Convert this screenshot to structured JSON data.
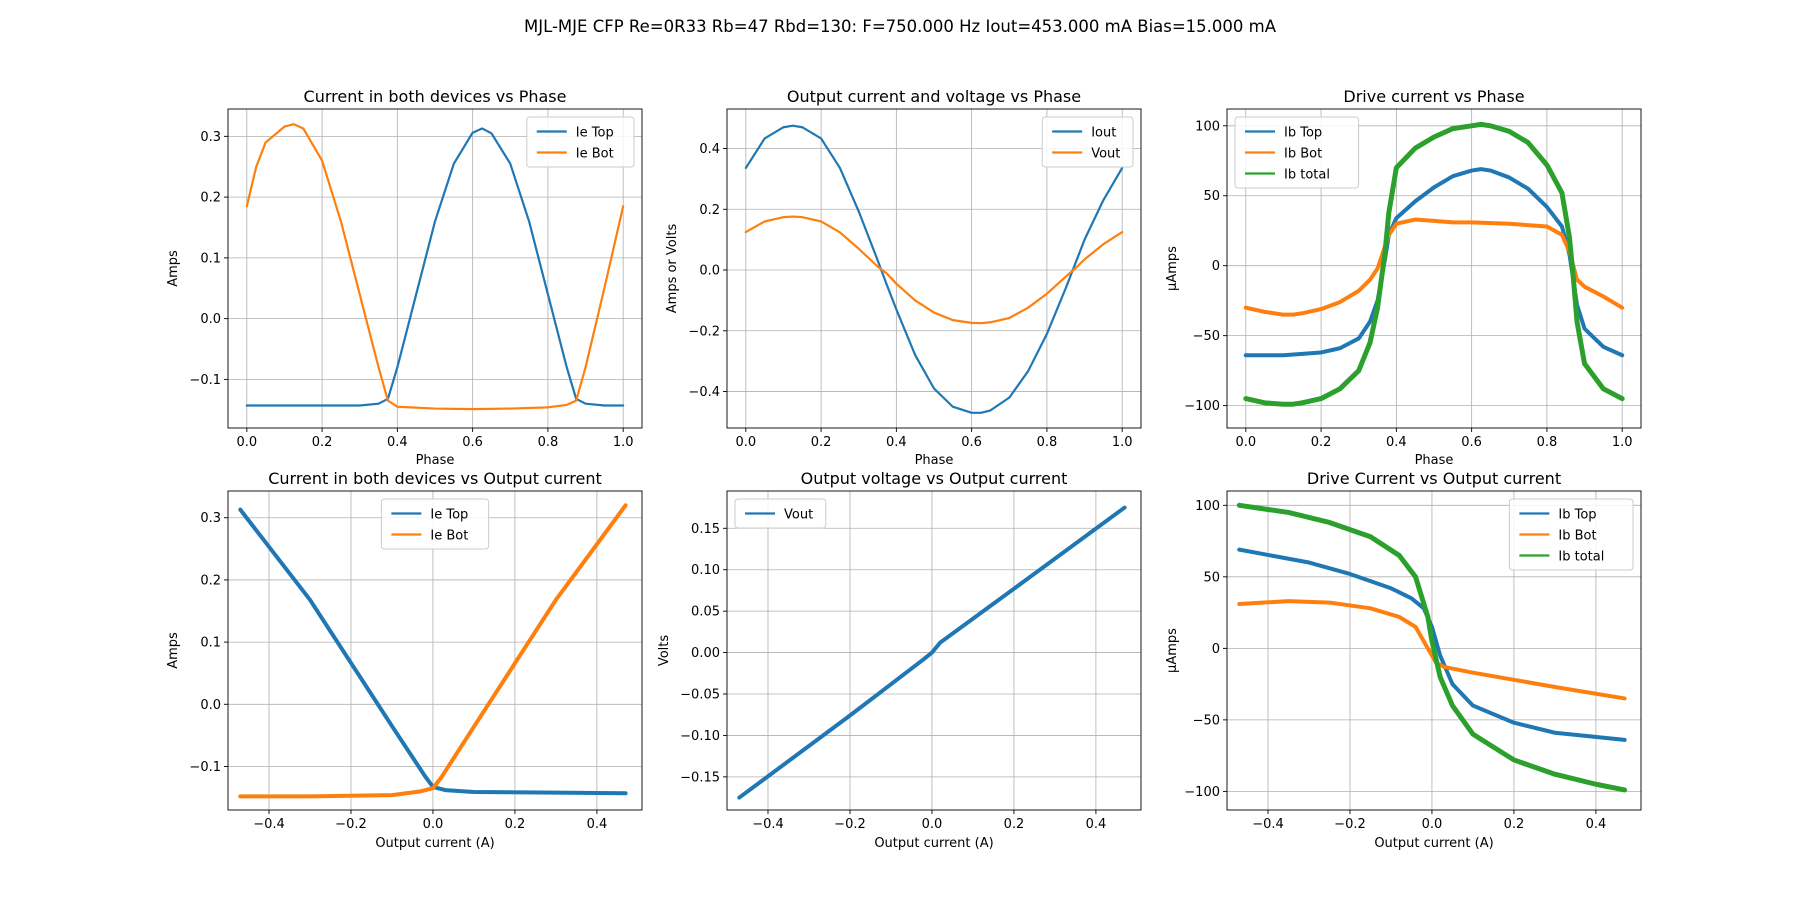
{
  "figure": {
    "suptitle": "MJL-MJE CFP Re=0R33 Rb=47 Rbd=130: F=750.000 Hz Iout=453.000 mA Bias=15.000 mA"
  },
  "colors": {
    "blue": "#1f77b4",
    "orange": "#ff7f0e",
    "green": "#2ca02c",
    "grid": "#b0b0b0"
  },
  "chart_data": [
    {
      "type": "line",
      "title": "Current in both devices vs Phase",
      "xlabel": "Phase",
      "ylabel": "Amps",
      "xlim": [
        -0.05,
        1.05
      ],
      "ylim": [
        -0.18,
        0.345
      ],
      "xticks": [
        0.0,
        0.2,
        0.4,
        0.6,
        0.8,
        1.0
      ],
      "xticklabels": [
        "0.0",
        "0.2",
        "0.4",
        "0.6",
        "0.8",
        "1.0"
      ],
      "yticks": [
        -0.1,
        0.0,
        0.1,
        0.2,
        0.3
      ],
      "yticklabels": [
        "−0.1",
        "0.0",
        "0.1",
        "0.2",
        "0.3"
      ],
      "grid": true,
      "legend": "top-right",
      "series": [
        {
          "name": "Ie Top",
          "color": "#1f77b4",
          "width": 2.2,
          "x": [
            0.0,
            0.1,
            0.2,
            0.3,
            0.35,
            0.375,
            0.4,
            0.45,
            0.5,
            0.55,
            0.6,
            0.625,
            0.65,
            0.7,
            0.75,
            0.8,
            0.85,
            0.875,
            0.9,
            0.95,
            1.0
          ],
          "y": [
            -0.143,
            -0.143,
            -0.143,
            -0.143,
            -0.14,
            -0.132,
            -0.08,
            0.04,
            0.16,
            0.255,
            0.306,
            0.313,
            0.305,
            0.255,
            0.16,
            0.04,
            -0.08,
            -0.132,
            -0.14,
            -0.143,
            -0.143
          ]
        },
        {
          "name": "Ie Bot",
          "color": "#ff7f0e",
          "width": 2.2,
          "x": [
            0.0,
            0.025,
            0.05,
            0.1,
            0.125,
            0.15,
            0.2,
            0.25,
            0.3,
            0.35,
            0.375,
            0.4,
            0.5,
            0.6,
            0.7,
            0.8,
            0.85,
            0.875,
            0.9,
            0.95,
            1.0
          ],
          "y": [
            0.185,
            0.25,
            0.29,
            0.316,
            0.32,
            0.313,
            0.26,
            0.16,
            0.04,
            -0.08,
            -0.135,
            -0.145,
            -0.148,
            -0.149,
            -0.148,
            -0.146,
            -0.142,
            -0.135,
            -0.08,
            0.05,
            0.185
          ]
        }
      ]
    },
    {
      "type": "line",
      "title": "Output current and voltage vs Phase",
      "xlabel": "Phase",
      "ylabel": "Amps or Volts",
      "xlim": [
        -0.05,
        1.05
      ],
      "ylim": [
        -0.52,
        0.53
      ],
      "xticks": [
        0.0,
        0.2,
        0.4,
        0.6,
        0.8,
        1.0
      ],
      "xticklabels": [
        "0.0",
        "0.2",
        "0.4",
        "0.6",
        "0.8",
        "1.0"
      ],
      "yticks": [
        -0.4,
        -0.2,
        0.0,
        0.2,
        0.4
      ],
      "yticklabels": [
        "−0.4",
        "−0.2",
        "0.0",
        "0.2",
        "0.4"
      ],
      "grid": true,
      "legend": "top-right",
      "series": [
        {
          "name": "Iout",
          "color": "#1f77b4",
          "width": 2.2,
          "x": [
            0.0,
            0.05,
            0.1,
            0.125,
            0.15,
            0.2,
            0.25,
            0.3,
            0.35,
            0.375,
            0.4,
            0.45,
            0.5,
            0.55,
            0.6,
            0.625,
            0.65,
            0.7,
            0.75,
            0.8,
            0.85,
            0.875,
            0.9,
            0.95,
            1.0
          ],
          "y": [
            0.336,
            0.433,
            0.47,
            0.475,
            0.47,
            0.433,
            0.336,
            0.193,
            0.033,
            -0.05,
            -0.13,
            -0.28,
            -0.39,
            -0.45,
            -0.47,
            -0.47,
            -0.462,
            -0.42,
            -0.333,
            -0.21,
            -0.06,
            0.02,
            0.1,
            0.23,
            0.336
          ]
        },
        {
          "name": "Vout",
          "color": "#ff7f0e",
          "width": 2.2,
          "x": [
            0.0,
            0.05,
            0.1,
            0.125,
            0.15,
            0.2,
            0.25,
            0.3,
            0.35,
            0.375,
            0.4,
            0.45,
            0.5,
            0.55,
            0.6,
            0.625,
            0.65,
            0.7,
            0.75,
            0.8,
            0.85,
            0.875,
            0.9,
            0.95,
            1.0
          ],
          "y": [
            0.125,
            0.16,
            0.174,
            0.176,
            0.174,
            0.16,
            0.124,
            0.07,
            0.012,
            -0.012,
            -0.045,
            -0.1,
            -0.14,
            -0.165,
            -0.174,
            -0.175,
            -0.172,
            -0.158,
            -0.124,
            -0.078,
            -0.022,
            0.005,
            0.035,
            0.085,
            0.125
          ]
        }
      ]
    },
    {
      "type": "line",
      "title": "Drive current vs Phase",
      "xlabel": "Phase",
      "ylabel": "µAmps",
      "xlim": [
        -0.05,
        1.05
      ],
      "ylim": [
        -116,
        112
      ],
      "xticks": [
        0.0,
        0.2,
        0.4,
        0.6,
        0.8,
        1.0
      ],
      "xticklabels": [
        "0.0",
        "0.2",
        "0.4",
        "0.6",
        "0.8",
        "1.0"
      ],
      "yticks": [
        -100,
        -50,
        0,
        50,
        100
      ],
      "yticklabels": [
        "−100",
        "−50",
        "0",
        "50",
        "100"
      ],
      "grid": true,
      "legend": "top-left",
      "series": [
        {
          "name": "Ib Top",
          "color": "#1f77b4",
          "width": 4,
          "x": [
            0.0,
            0.1,
            0.2,
            0.25,
            0.3,
            0.33,
            0.35,
            0.37,
            0.38,
            0.4,
            0.45,
            0.5,
            0.55,
            0.6,
            0.625,
            0.65,
            0.7,
            0.75,
            0.8,
            0.84,
            0.86,
            0.88,
            0.9,
            0.95,
            1.0
          ],
          "y": [
            -64,
            -64,
            -62,
            -59,
            -52,
            -40,
            -25,
            5,
            22,
            34,
            46,
            56,
            64,
            68,
            69,
            68,
            63,
            55,
            42,
            28,
            8,
            -28,
            -45,
            -58,
            -64
          ]
        },
        {
          "name": "Ib Bot",
          "color": "#ff7f0e",
          "width": 4,
          "x": [
            0.0,
            0.05,
            0.1,
            0.125,
            0.15,
            0.2,
            0.25,
            0.3,
            0.33,
            0.35,
            0.37,
            0.38,
            0.4,
            0.45,
            0.5,
            0.55,
            0.6,
            0.7,
            0.8,
            0.84,
            0.86,
            0.87,
            0.88,
            0.9,
            0.95,
            1.0
          ],
          "y": [
            -30,
            -33,
            -35,
            -35,
            -34,
            -31,
            -26,
            -18,
            -10,
            -2,
            14,
            22,
            30,
            33,
            32,
            31,
            31,
            30,
            28,
            22,
            10,
            0,
            -10,
            -15,
            -22,
            -30
          ]
        },
        {
          "name": "Ib total",
          "color": "#2ca02c",
          "width": 5,
          "x": [
            0.0,
            0.05,
            0.1,
            0.125,
            0.15,
            0.2,
            0.25,
            0.3,
            0.33,
            0.35,
            0.37,
            0.38,
            0.4,
            0.45,
            0.5,
            0.55,
            0.6,
            0.625,
            0.65,
            0.7,
            0.75,
            0.8,
            0.84,
            0.86,
            0.87,
            0.88,
            0.9,
            0.95,
            1.0
          ],
          "y": [
            -95,
            -98,
            -99,
            -99,
            -98,
            -95,
            -88,
            -75,
            -55,
            -30,
            10,
            38,
            70,
            84,
            92,
            98,
            100,
            101,
            100,
            96,
            88,
            72,
            52,
            20,
            -8,
            -40,
            -70,
            -88,
            -95
          ]
        }
      ]
    },
    {
      "type": "line",
      "title": "Current in both devices vs Output current",
      "xlabel": "Output current (A)",
      "ylabel": "Amps",
      "xlim": [
        -0.5,
        0.51
      ],
      "ylim": [
        -0.17,
        0.343
      ],
      "xticks": [
        -0.4,
        -0.2,
        0.0,
        0.2,
        0.4
      ],
      "xticklabels": [
        "−0.4",
        "−0.2",
        "0.0",
        "0.2",
        "0.4"
      ],
      "yticks": [
        -0.1,
        0.0,
        0.1,
        0.2,
        0.3
      ],
      "yticklabels": [
        "−0.1",
        "0.0",
        "0.1",
        "0.2",
        "0.3"
      ],
      "grid": true,
      "legend": "top-center",
      "series": [
        {
          "name": "Ie Top",
          "color": "#1f77b4",
          "width": 4,
          "x": [
            -0.47,
            -0.3,
            -0.1,
            -0.02,
            0.0,
            0.03,
            0.1,
            0.3,
            0.47
          ],
          "y": [
            0.313,
            0.168,
            -0.035,
            -0.115,
            -0.133,
            -0.138,
            -0.141,
            -0.142,
            -0.143
          ]
        },
        {
          "name": "Ie Bot",
          "color": "#ff7f0e",
          "width": 4,
          "x": [
            -0.47,
            -0.3,
            -0.1,
            -0.03,
            0.0,
            0.02,
            0.1,
            0.3,
            0.47
          ],
          "y": [
            -0.148,
            -0.148,
            -0.146,
            -0.14,
            -0.135,
            -0.118,
            -0.036,
            0.168,
            0.32
          ]
        }
      ]
    },
    {
      "type": "line",
      "title": "Output voltage vs Output current",
      "xlabel": "Output current (A)",
      "ylabel": "Volts",
      "xlim": [
        -0.5,
        0.51
      ],
      "ylim": [
        -0.19,
        0.195
      ],
      "xticks": [
        -0.4,
        -0.2,
        0.0,
        0.2,
        0.4
      ],
      "xticklabels": [
        "−0.4",
        "−0.2",
        "0.0",
        "0.2",
        "0.4"
      ],
      "yticks": [
        -0.15,
        -0.1,
        -0.05,
        0.0,
        0.05,
        0.1,
        0.15
      ],
      "yticklabels": [
        "−0.15",
        "−0.10",
        "−0.05",
        "0.00",
        "0.05",
        "0.10",
        "0.15"
      ],
      "grid": true,
      "legend": "top-left",
      "series": [
        {
          "name": "Vout",
          "color": "#1f77b4",
          "width": 4,
          "x": [
            -0.47,
            -0.2,
            -0.02,
            0.0,
            0.02,
            0.2,
            0.47
          ],
          "y": [
            -0.175,
            -0.076,
            -0.008,
            0.0,
            0.012,
            0.077,
            0.175
          ]
        }
      ]
    },
    {
      "type": "line",
      "title": "Drive Current vs Output current",
      "xlabel": "Output current (A)",
      "ylabel": "µAmps",
      "xlim": [
        -0.5,
        0.51
      ],
      "ylim": [
        -113,
        110
      ],
      "xticks": [
        -0.4,
        -0.2,
        0.0,
        0.2,
        0.4
      ],
      "xticklabels": [
        "−0.4",
        "−0.2",
        "0.0",
        "0.2",
        "0.4"
      ],
      "yticks": [
        -100,
        -50,
        0,
        50,
        100
      ],
      "yticklabels": [
        "−100",
        "−50",
        "0",
        "50",
        "100"
      ],
      "grid": true,
      "legend": "top-right",
      "series": [
        {
          "name": "Ib Top",
          "color": "#1f77b4",
          "width": 4,
          "x": [
            -0.47,
            -0.3,
            -0.2,
            -0.1,
            -0.05,
            -0.02,
            0.0,
            0.02,
            0.05,
            0.1,
            0.2,
            0.3,
            0.47
          ],
          "y": [
            69,
            60,
            52,
            42,
            35,
            28,
            15,
            -5,
            -25,
            -40,
            -52,
            -59,
            -64
          ]
        },
        {
          "name": "Ib Bot",
          "color": "#ff7f0e",
          "width": 4,
          "x": [
            -0.47,
            -0.35,
            -0.25,
            -0.15,
            -0.08,
            -0.04,
            -0.01,
            0.01,
            0.03,
            0.1,
            0.2,
            0.3,
            0.47
          ],
          "y": [
            31,
            33,
            32,
            28,
            22,
            15,
            0,
            -10,
            -13,
            -17,
            -22,
            -27,
            -35
          ]
        },
        {
          "name": "Ib total",
          "color": "#2ca02c",
          "width": 5,
          "x": [
            -0.47,
            -0.35,
            -0.25,
            -0.15,
            -0.08,
            -0.04,
            -0.01,
            0.0,
            0.02,
            0.05,
            0.1,
            0.2,
            0.3,
            0.4,
            0.47
          ],
          "y": [
            100,
            95,
            88,
            78,
            65,
            50,
            22,
            5,
            -20,
            -40,
            -60,
            -78,
            -88,
            -95,
            -99
          ]
        }
      ]
    }
  ]
}
